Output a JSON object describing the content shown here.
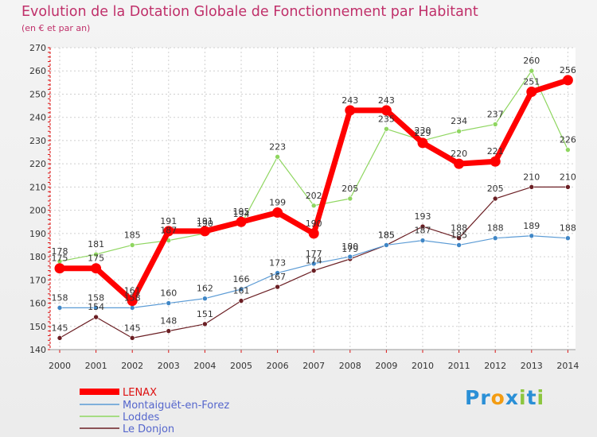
{
  "chart_data": {
    "type": "line",
    "title": "Evolution de la Dotation Globale de Fonctionnement par Habitant",
    "subtitle": "(en € et par an)",
    "xlabel": "",
    "ylabel": "",
    "ylim": [
      140,
      270
    ],
    "yticks": [
      "140",
      "150",
      "160",
      "170",
      "180",
      "190",
      "200",
      "210",
      "220",
      "230",
      "240",
      "250",
      "260",
      "270"
    ],
    "categories": [
      "2000",
      "2001",
      "2002",
      "2003",
      "2004",
      "2005",
      "2006",
      "2007",
      "2008",
      "2009",
      "2010",
      "2011",
      "2012",
      "2013",
      "2014"
    ],
    "grid": true,
    "legend_position": "bottom-left",
    "series": [
      {
        "name": "Le Donjon",
        "color": "#6b1f24",
        "values": [
          145,
          154,
          145,
          148,
          151,
          161,
          167,
          174,
          179,
          185,
          193,
          188,
          205,
          210,
          210
        ]
      },
      {
        "name": "Montaiguët-en-Forez",
        "color": "#5b9bd5",
        "values": [
          158,
          158,
          158,
          160,
          162,
          166,
          173,
          177,
          180,
          185,
          187,
          185,
          188,
          189,
          188
        ]
      },
      {
        "name": "Loddes",
        "color": "#8fd660",
        "values": [
          178,
          181,
          185,
          187,
          190,
          194,
          223,
          202,
          205,
          235,
          230,
          234,
          237,
          260,
          226
        ]
      },
      {
        "name": "LENAX",
        "color": "#ff0000",
        "values": [
          175,
          175,
          161,
          191,
          191,
          195,
          199,
          190,
          243,
          243,
          229,
          220,
          221,
          251,
          256
        ]
      }
    ],
    "legend_order": [
      "LENAX",
      "Montaiguët-en-Forez",
      "Loddes",
      "Le Donjon"
    ]
  },
  "logo": {
    "letters": [
      "P",
      "r",
      "o",
      "x",
      "i",
      "t",
      "i"
    ],
    "colors": [
      "#2a8fd6",
      "#2a8fd6",
      "#f39c12",
      "#2a8fd6",
      "#8cc63f",
      "#2a8fd6",
      "#8cc63f"
    ]
  }
}
